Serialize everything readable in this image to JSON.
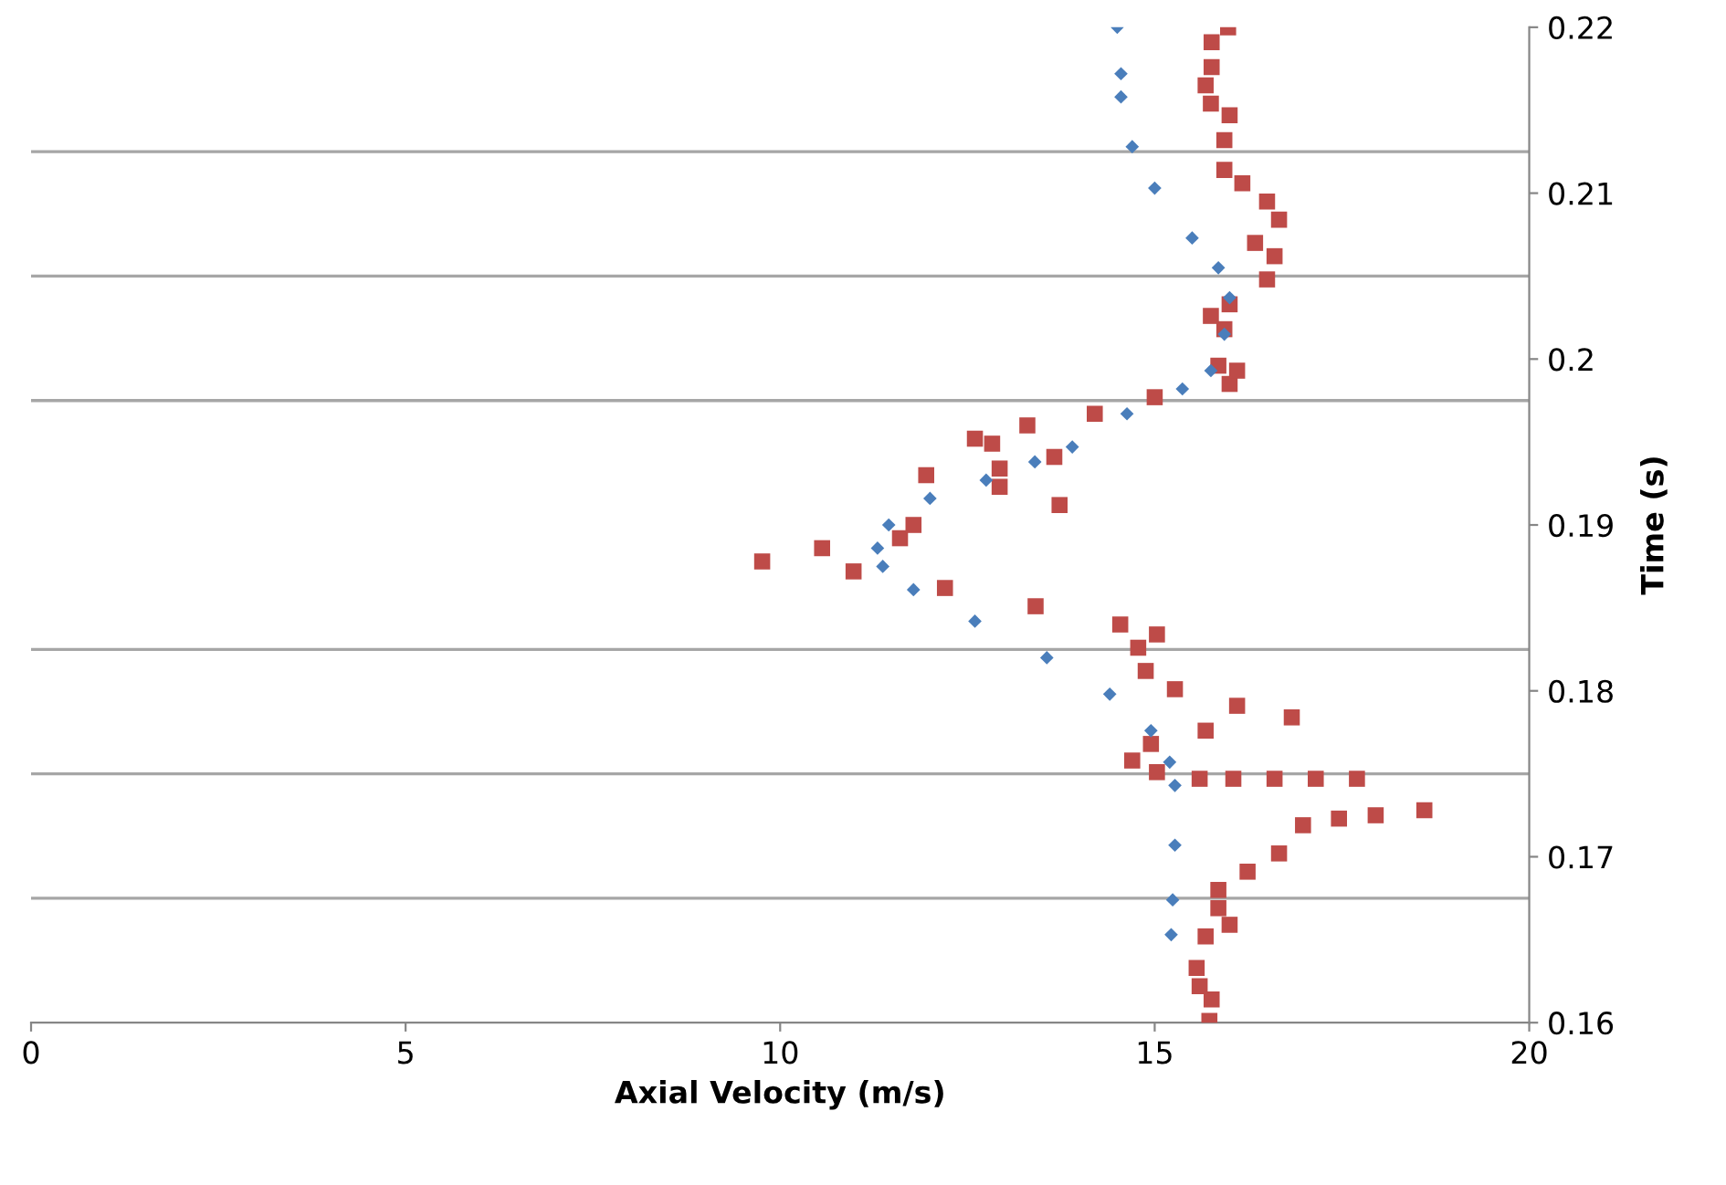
{
  "chart_data": {
    "type": "scatter",
    "xlabel": "Axial Velocity (m/s)",
    "xlim": [
      0,
      20
    ],
    "xticks": [
      0,
      5,
      10,
      15,
      20
    ],
    "ylim": [
      0.16,
      0.22
    ],
    "yticks": [
      0.16,
      {
        "value": 0.1675,
        "label": null
      },
      0.17,
      {
        "value": 0.175,
        "label": null
      },
      0.18,
      {
        "value": 0.1825,
        "label": null
      },
      0.19,
      {
        "value": 0.1975,
        "label": null
      },
      {
        "value": 0.2,
        "label": "0.2"
      },
      {
        "value": 0.205,
        "label": null
      },
      0.21,
      {
        "value": 0.2125,
        "label": null
      },
      0.22
    ],
    "ylabel": "Time (s)",
    "grid": "y",
    "series": [
      {
        "color": "#4a7ebb",
        "marker": "diamond",
        "x": [
          14.5,
          14.55,
          14.55,
          14.7,
          15.0,
          15.5,
          15.85,
          16.0,
          15.93,
          15.75,
          15.37,
          14.63,
          13.9,
          13.4,
          12.75,
          12.0,
          11.45,
          11.3,
          11.37,
          11.78,
          12.6,
          13.56,
          14.4,
          14.95,
          15.2,
          15.27,
          15.27,
          15.24,
          15.22
        ],
        "values": [
          0.22,
          0.2172,
          0.2158,
          0.2128,
          0.2103,
          0.2073,
          0.2055,
          0.2037,
          0.2015,
          0.1993,
          0.1982,
          0.1967,
          0.1947,
          0.1938,
          0.1927,
          0.1916,
          0.19,
          0.1886,
          0.1875,
          0.1861,
          0.1842,
          0.182,
          0.1798,
          0.1776,
          0.1757,
          0.1743,
          0.1707,
          0.1674,
          0.1653
        ]
      },
      {
        "color": "#be4b48",
        "marker": "square",
        "x": [
          15.73,
          15.76,
          15.6,
          15.56,
          15.68,
          16.0,
          15.85,
          15.85,
          16.24,
          16.66,
          16.98,
          17.46,
          17.95,
          18.6,
          17.7,
          17.15,
          16.6,
          16.05,
          15.6,
          15.03,
          14.7,
          14.95,
          15.68,
          16.83,
          16.1,
          15.27,
          14.88,
          14.78,
          15.03,
          14.54,
          13.41,
          12.2,
          10.98,
          9.76,
          10.56,
          11.6,
          11.78,
          13.73,
          12.93,
          11.95,
          12.93,
          13.66,
          12.83,
          12.6,
          13.3,
          14.2,
          15.0,
          16.0,
          16.1,
          15.85,
          15.93,
          15.75,
          16.0,
          16.5,
          16.6,
          16.34,
          16.66,
          16.5,
          16.17,
          15.93,
          15.93,
          16.0,
          15.75,
          15.68,
          15.76,
          15.76,
          15.98
        ],
        "values": [
          0.1601,
          0.1614,
          0.1622,
          0.1633,
          0.1652,
          0.1659,
          0.1669,
          0.168,
          0.1691,
          0.1702,
          0.1719,
          0.1723,
          0.1725,
          0.1728,
          0.1747,
          0.1747,
          0.1747,
          0.1747,
          0.1747,
          0.1751,
          0.1758,
          0.1768,
          0.1776,
          0.1784,
          0.1791,
          0.1801,
          0.1812,
          0.1826,
          0.1834,
          0.184,
          0.1851,
          0.1862,
          0.1872,
          0.1878,
          0.1886,
          0.1892,
          0.19,
          0.1912,
          0.1923,
          0.193,
          0.1934,
          0.1941,
          0.1949,
          0.1952,
          0.196,
          0.1967,
          0.1977,
          0.1985,
          0.1993,
          0.1996,
          0.2018,
          0.2026,
          0.2033,
          0.2048,
          0.2062,
          0.207,
          0.2084,
          0.2095,
          0.2106,
          0.2114,
          0.2132,
          0.2147,
          0.2154,
          0.2165,
          0.2176,
          0.2191,
          0.22
        ]
      }
    ]
  }
}
